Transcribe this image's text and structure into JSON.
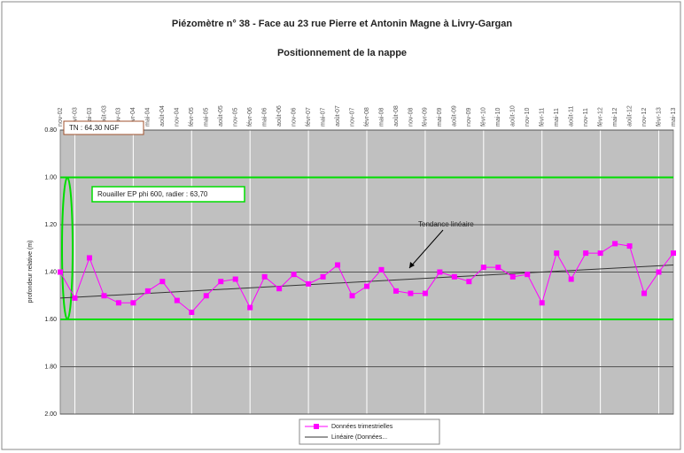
{
  "chart_data": {
    "type": "line",
    "title": "Piézomètre n° 38 - Face au 23 rue Pierre et Antonin Magne à Livry-Gargan",
    "subtitle": "Positionnement de la nappe",
    "y_label": "profondeur relative (m)",
    "categories": [
      "nov-02",
      "févr-03",
      "mai-03",
      "août-03",
      "nov-03",
      "févr-04",
      "mai-04",
      "août-04",
      "nov-04",
      "févr-05",
      "mai-05",
      "août-05",
      "nov-05",
      "févr-06",
      "mai-06",
      "août-06",
      "nov-06",
      "févr-07",
      "mai-07",
      "août-07",
      "nov-07",
      "févr-08",
      "mai-08",
      "août-08",
      "nov-08",
      "févr-09",
      "mai-09",
      "août-09",
      "nov-09",
      "févr-10",
      "mai-10",
      "août-10",
      "nov-10",
      "févr-11",
      "mai-11",
      "août-11",
      "nov-11",
      "févr-12",
      "mai-12",
      "août-12",
      "nov-12",
      "févr-13",
      "mai-13"
    ],
    "series": [
      {
        "name": "Données trimestrielles",
        "color": "#ff00ff",
        "values": [
          1.4,
          1.51,
          1.34,
          1.5,
          1.53,
          1.53,
          1.48,
          1.44,
          1.52,
          1.57,
          1.5,
          1.44,
          1.43,
          1.55,
          1.42,
          1.47,
          1.41,
          1.45,
          1.42,
          1.37,
          1.5,
          1.46,
          1.39,
          1.48,
          1.49,
          1.49,
          1.4,
          1.42,
          1.44,
          1.38,
          1.38,
          1.42,
          1.41,
          1.53,
          1.32,
          1.43,
          1.32,
          1.32,
          1.28,
          1.29,
          1.49,
          1.4,
          1.32
        ]
      }
    ],
    "trend": {
      "name": "Linéaire (Données...",
      "color": "#333333",
      "values": [
        1.51,
        1.37
      ]
    },
    "reference_lines": {
      "color": "#00dd00",
      "values": [
        1.0,
        1.6
      ]
    },
    "annotations": [
      "TN : 64,30 NGF",
      "Rouailler EP phi 600, radier : 63,70",
      "Tendance linéaire"
    ],
    "ylim": [
      0.8,
      2.0
    ],
    "y_inverted": true,
    "yticks": [
      {
        "value": 0.8,
        "label": "0.80"
      },
      {
        "value": 1.0,
        "label": "1.00"
      },
      {
        "value": 1.2,
        "label": "1.20"
      },
      {
        "value": 1.4,
        "label": "1.40"
      },
      {
        "value": 1.6,
        "label": "1.60"
      },
      {
        "value": 1.8,
        "label": "1.80"
      },
      {
        "value": 2.0,
        "label": "2.00"
      }
    ],
    "grid": true
  }
}
